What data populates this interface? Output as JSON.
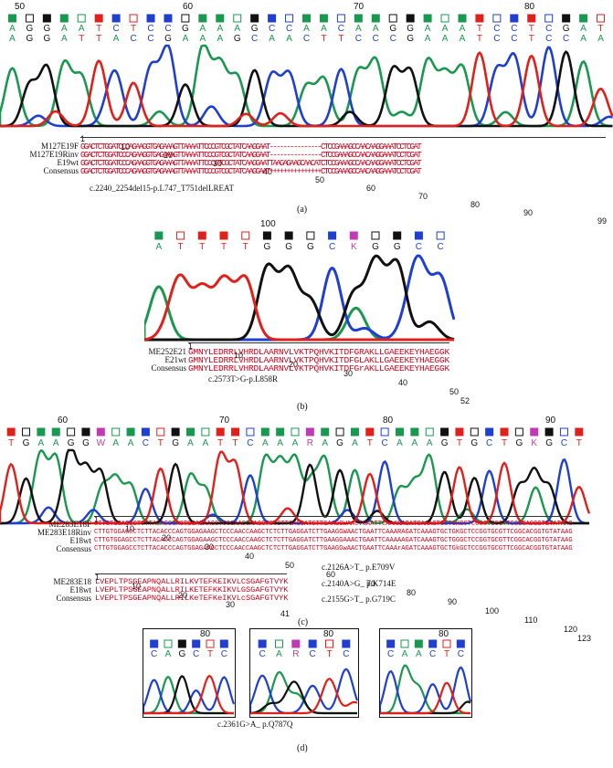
{
  "panel_a": {
    "label": "(a)",
    "position_ticks": [
      "50",
      "60",
      "70",
      "80"
    ],
    "bases_top": "AGGAATCTCCGAAAGCCAACAAGGAAATCCTCGAT",
    "bases_bottom": "AGGATTACCGAAAGCAACTTCCCGAAATCCTCCAAC",
    "ruler_numbers": [
      "1",
      "10",
      "20",
      "30",
      "40",
      "50",
      "60",
      "70",
      "80",
      "90",
      "99"
    ],
    "rows": [
      {
        "name": "M127E19F",
        "seq": "GGACTCTGGATCCCAGAAGGTGAGAAAGTTAAAATTCCCGTCGCTATCAAGGAAT---------------CTCCGAAAGCCAACAAGGAAATCCTCGAT"
      },
      {
        "name": "M127E19Rinv",
        "seq": "GGACTCTGGATCCCAGAAGGTGAGAAAGTTAAAATTCCCGTCGCTATCAAGGAAT---------------CTCCGAAAGCCAACAAGGAAATCCTCGAT"
      },
      {
        "name": "E19wt",
        "seq": "GGACTCTGGATCCCAGAAGGTGAGAAAGTTAAAATTCCCGTCGCTATCAAGGAATTAAGAGAAGCAACATCTCCGAAAGCCAACAAGGAAATCCTCGAT"
      },
      {
        "name": "Consensus",
        "seq": "GGACTCTGGATCCCAGAAGGTGAGAAAGTTAAAATTCCCGTCGCTATCAAGGAAT+++++++++++++++CTCCGAAAGCCAACAAGGAAATCCTCGAT"
      }
    ],
    "annotation": "c.2240_2254del15-p.L747_T751delLREAT"
  },
  "panel_b": {
    "label": "(b)",
    "position_tick": "100",
    "bases": "ATTTTGGGCKGGCC",
    "ruler_numbers": [
      "1",
      "10",
      "20",
      "30",
      "40",
      "50",
      "52"
    ],
    "rows": [
      {
        "name": "ME252E21",
        "seq": "GMNYLEDRRLVHRDLAARNVLVKTPQHVKITDFGRAKLLGAEEKEYHAEGGK"
      },
      {
        "name": "E21wt",
        "seq": "GMNYLEDRRLVHRDLAARNVLVKTPQHVKITDFGLAKLLGAEEKEYHAEGGK"
      },
      {
        "name": "Consensus",
        "seq": "GMNYLEDRRLVHRDLAARNVLVKTPQHVKITDFGrAKLLGAEEKEYHAEGGK"
      }
    ],
    "annotation": "c.2573T>G-p.L858R"
  },
  "panel_c": {
    "label": "(c)",
    "position_ticks": [
      "60",
      "70",
      "80",
      "90"
    ],
    "bases": "TGAAGGWAACTGAATTCAAARAGATCAAAGTGCTGKGCT",
    "ruler_numbers": [
      "1",
      "10",
      "20",
      "30",
      "40",
      "50",
      "60",
      "70",
      "80",
      "90",
      "100",
      "110",
      "120",
      "123"
    ],
    "rows": [
      {
        "name": "ME283E18F",
        "seq": "CTTGTGGAGCCTCTTACACCCAGTGGAGAAGCTCCCAACCAAGCTCTCTTGAGGATCTTGAAGGWAACTGAATTCAAARAGATCAAAGTGCTGKGCTCCGGTGCGTTCGGCACGGTGTATAAG"
      },
      {
        "name": "ME283E18Rinv",
        "seq": "CTTGTGGAGCCTCTTACACCCAGTGGAGAAGCTCCCAACCAAGCTCTCTTGAGGATCTTGAAGGWAACTGAATTCAAARAGATCAAAGTGCTGKGCTCCGGTGCGTTCGGCACGGTGTATAAG"
      },
      {
        "name": "E18wt",
        "seq": "CTTGTGGAGCCTCTTACACCCAGTGGAGAAGCTCCCAACCAAGCTCTCTTGAGGATCTTGAAGGAAACTGAATTCAAAAAGATCAAAGTGCTGGGCTCCGGTGCGTTCGGCACGGTGTATAAG"
      },
      {
        "name": "Consensus",
        "seq": "CTTGTGGAGCCTCTTACACCCAGTGGAGAAGCTCCCAACCAAGCTCTCTTGAGGATCTTGAAGGwAACTGAATTCAAArAGATCAAAGTGCTGkGCTCCGGTGCGTTCGGCACGGTGTATAAG"
      }
    ],
    "protein_ruler_numbers": [
      "1",
      "10",
      "20",
      "30",
      "41"
    ],
    "protein_rows": [
      {
        "name": "ME283E18",
        "seq": "LVEPLTPSGEAPNQALLRILKVTEFKEIKVLCSGAFGTVYK"
      },
      {
        "name": "E18wt",
        "seq": "LVEPLTPSGEAPNQALLRILKETEFKKIKVLGSGAFGTVYK"
      },
      {
        "name": "Consensus",
        "seq": "LVEPLTPSGEAPNQALLRILKeTEFKeIKVLcSGAFGTVYK"
      }
    ],
    "annotations": [
      "c.2126A>T_ p.E709V",
      "c.2140A>G_ p.K714E",
      "c.2155G>T_ p.G719C"
    ]
  },
  "panel_d": {
    "label": "(d)",
    "traces": [
      {
        "position_tick": "80",
        "bases": "CAGCTC"
      },
      {
        "position_tick": "80",
        "bases": "CARCTC"
      },
      {
        "position_tick": "80",
        "bases": "CAACTC"
      }
    ],
    "annotation": "c.2361G>A_ p.Q787Q"
  },
  "colors": {
    "A": "#1a9850",
    "C": "#1f3fd1",
    "G": "#111111",
    "T": "#e0201b",
    "ambiguous": "#c13ab5",
    "sequence_text": "#d0021b"
  }
}
